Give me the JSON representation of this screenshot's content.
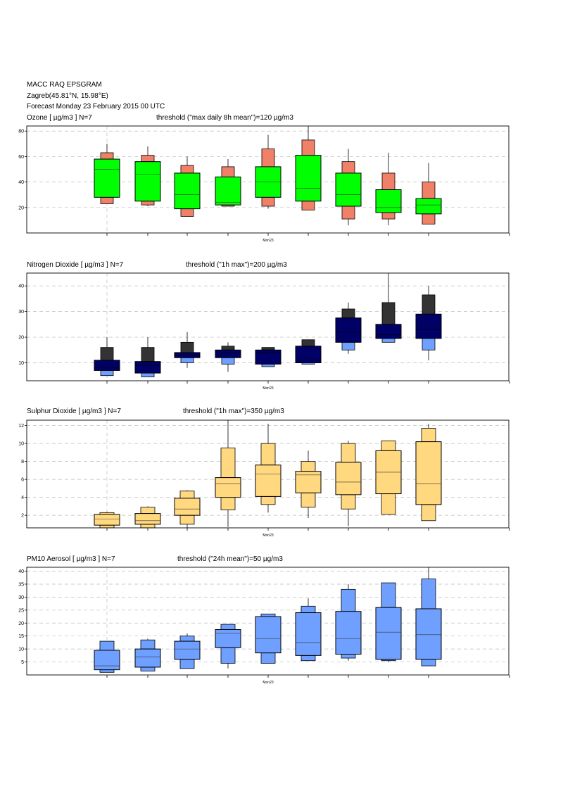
{
  "header": {
    "title": "MACC RAQ EPSGRAM",
    "location": "Zagreb(45.81°N, 15.98°E)",
    "forecast": "Forecast Monday 23 February 2015 00 UTC"
  },
  "colors": {
    "ozone_inner": "#00ff00",
    "ozone_outer": "#f08068",
    "no2_inner": "#000066",
    "no2_upper": "#333333",
    "no2_lower": "#6fa0ff",
    "so2": "#ffd880",
    "pm10": "#6fa0ff"
  },
  "chart_data": [
    {
      "type": "boxplot",
      "name": "ozone",
      "title": "Ozone [ µg/m3 ]    N=7",
      "threshold": "threshold (\"max daily 8h mean\")=120 µg/m3",
      "xtick_label": "Mon23",
      "ylim": [
        0,
        84
      ],
      "yticks": [
        20,
        40,
        60,
        80
      ],
      "grid": true,
      "boxes": [
        {
          "whisker_low": 23,
          "outer_low": 23,
          "inner_low": 28,
          "median": 50,
          "inner_high": 58,
          "outer_high": 63,
          "whisker_high": 70
        },
        {
          "whisker_low": 21,
          "outer_low": 22,
          "inner_low": 25,
          "median": 46,
          "inner_high": 56,
          "outer_high": 61,
          "whisker_high": 68
        },
        {
          "whisker_low": 13,
          "outer_low": 13,
          "inner_low": 19,
          "median": 30,
          "inner_high": 47,
          "outer_high": 53,
          "whisker_high": 60
        },
        {
          "whisker_low": 21,
          "outer_low": 21,
          "inner_low": 22,
          "median": 24,
          "inner_high": 44,
          "outer_high": 52,
          "whisker_high": 58
        },
        {
          "whisker_low": 19,
          "outer_low": 21,
          "inner_low": 28,
          "median": 40,
          "inner_high": 52,
          "outer_high": 66,
          "whisker_high": 77
        },
        {
          "whisker_low": 18,
          "outer_low": 18,
          "inner_low": 25,
          "median": 35,
          "inner_high": 61,
          "outer_high": 73,
          "whisker_high": 84
        },
        {
          "whisker_low": 6,
          "outer_low": 11,
          "inner_low": 21,
          "median": 30,
          "inner_high": 47,
          "outer_high": 56,
          "whisker_high": 66
        },
        {
          "whisker_low": 6,
          "outer_low": 11,
          "inner_low": 16,
          "median": 20,
          "inner_high": 34,
          "outer_high": 47,
          "whisker_high": 63
        },
        {
          "whisker_low": 7,
          "outer_low": 7,
          "inner_low": 15,
          "median": 22,
          "inner_high": 27,
          "outer_high": 40,
          "whisker_high": 55
        }
      ]
    },
    {
      "type": "boxplot",
      "name": "no2",
      "title": "Nitrogen Dioxide [ µg/m3 ]    N=7",
      "threshold": "threshold (\"1h max\")=200 µg/m3",
      "xtick_label": "Mon23",
      "ylim": [
        3,
        45
      ],
      "yticks": [
        10,
        20,
        30,
        40
      ],
      "grid": true,
      "boxes": [
        {
          "whisker_low": 5,
          "outer_low": 5,
          "inner_low": 7,
          "median": 8,
          "inner_high": 11,
          "outer_high": 16,
          "whisker_high": 20
        },
        {
          "whisker_low": 4.5,
          "outer_low": 4.5,
          "inner_low": 6,
          "median": 9,
          "inner_high": 10.5,
          "outer_high": 16,
          "whisker_high": 20
        },
        {
          "whisker_low": 8,
          "outer_low": 10,
          "inner_low": 12,
          "median": 13,
          "inner_high": 14,
          "outer_high": 18,
          "whisker_high": 22
        },
        {
          "whisker_low": 6.5,
          "outer_low": 9.5,
          "inner_low": 12,
          "median": 14,
          "inner_high": 15,
          "outer_high": 16.5,
          "whisker_high": 18
        },
        {
          "whisker_low": 8.5,
          "outer_low": 8.5,
          "inner_low": 9.5,
          "median": 14,
          "inner_high": 15,
          "outer_high": 16,
          "whisker_high": 16
        },
        {
          "whisker_low": 9.5,
          "outer_low": 9.5,
          "inner_low": 10,
          "median": 11,
          "inner_high": 16.5,
          "outer_high": 19,
          "whisker_high": 19
        },
        {
          "whisker_low": 13.5,
          "outer_low": 15,
          "inner_low": 18,
          "median": 22,
          "inner_high": 27.5,
          "outer_high": 31,
          "whisker_high": 33.5
        },
        {
          "whisker_low": 18,
          "outer_low": 18,
          "inner_low": 19.5,
          "median": 21,
          "inner_high": 25,
          "outer_high": 33.5,
          "whisker_high": 45
        },
        {
          "whisker_low": 11,
          "outer_low": 15,
          "inner_low": 19.5,
          "median": 23,
          "inner_high": 29,
          "outer_high": 36.5,
          "whisker_high": 40
        }
      ]
    },
    {
      "type": "boxplot",
      "name": "so2",
      "title": "Sulphur Dioxide [ µg/m3 ]    N=7",
      "threshold": "threshold (\"1h max\")=350 µg/m3",
      "xtick_label": "Mon23",
      "ylim": [
        0.6,
        12.6
      ],
      "yticks": [
        2,
        4,
        6,
        8,
        10,
        12
      ],
      "grid": true,
      "boxes": [
        {
          "whisker_low": 0.6,
          "outer_low": 0.6,
          "inner_low": 0.9,
          "median": 1.6,
          "inner_high": 2.1,
          "outer_high": 2.3,
          "whisker_high": 2.4
        },
        {
          "whisker_low": 0.6,
          "outer_low": 0.6,
          "inner_low": 1.0,
          "median": 1.4,
          "inner_high": 2.2,
          "outer_high": 2.9,
          "whisker_high": 3.0
        },
        {
          "whisker_low": 0.6,
          "outer_low": 1.0,
          "inner_low": 2.0,
          "median": 2.7,
          "inner_high": 3.9,
          "outer_high": 4.7,
          "whisker_high": 4.8
        },
        {
          "whisker_low": 0.7,
          "outer_low": 2.6,
          "inner_low": 4.0,
          "median": 5.5,
          "inner_high": 6.2,
          "outer_high": 9.5,
          "whisker_high": 12.6
        },
        {
          "whisker_low": 2.3,
          "outer_low": 3.2,
          "inner_low": 4.1,
          "median": 6.6,
          "inner_high": 7.6,
          "outer_high": 10.0,
          "whisker_high": 12.2
        },
        {
          "whisker_low": 1.7,
          "outer_low": 2.9,
          "inner_low": 4.5,
          "median": 6.5,
          "inner_high": 6.9,
          "outer_high": 8.0,
          "whisker_high": 9.2
        },
        {
          "whisker_low": 0.8,
          "outer_low": 2.7,
          "inner_low": 4.3,
          "median": 5.7,
          "inner_high": 7.9,
          "outer_high": 10.0,
          "whisker_high": 10.3
        },
        {
          "whisker_low": 2.1,
          "outer_low": 2.1,
          "inner_low": 4.4,
          "median": 6.8,
          "inner_high": 9.2,
          "outer_high": 10.3,
          "whisker_high": 10.3
        },
        {
          "whisker_low": 1.4,
          "outer_low": 1.4,
          "inner_low": 3.2,
          "median": 5.5,
          "inner_high": 10.2,
          "outer_high": 11.7,
          "whisker_high": 12.2
        }
      ]
    },
    {
      "type": "boxplot",
      "name": "pm10",
      "title": "PM10 Aerosol [ µg/m3 ]    N=7",
      "threshold": "threshold (\"24h mean\")=50 µg/m3",
      "xtick_label": "Mon23",
      "ylim": [
        0,
        41.5
      ],
      "yticks": [
        5,
        10,
        15,
        20,
        25,
        30,
        35,
        40
      ],
      "grid": true,
      "boxes": [
        {
          "whisker_low": 1,
          "outer_low": 1,
          "inner_low": 2,
          "median": 3.5,
          "inner_high": 9.5,
          "outer_high": 13,
          "whisker_high": 13
        },
        {
          "whisker_low": 1.5,
          "outer_low": 1.5,
          "inner_low": 3,
          "median": 7,
          "inner_high": 10,
          "outer_high": 13.5,
          "whisker_high": 14
        },
        {
          "whisker_low": 2.5,
          "outer_low": 2.5,
          "inner_low": 6,
          "median": 10,
          "inner_high": 13,
          "outer_high": 15,
          "whisker_high": 16
        },
        {
          "whisker_low": 2.5,
          "outer_low": 4.5,
          "inner_low": 10.5,
          "median": 16,
          "inner_high": 17.5,
          "outer_high": 19.5,
          "whisker_high": 19.5
        },
        {
          "whisker_low": 4.5,
          "outer_low": 4.5,
          "inner_low": 8.5,
          "median": 14,
          "inner_high": 22.5,
          "outer_high": 23.5,
          "whisker_high": 23.5
        },
        {
          "whisker_low": 5.5,
          "outer_low": 5.5,
          "inner_low": 7.5,
          "median": 12.5,
          "inner_high": 24,
          "outer_high": 26.5,
          "whisker_high": 29.5
        },
        {
          "whisker_low": 5.5,
          "outer_low": 6.5,
          "inner_low": 8,
          "median": 14,
          "inner_high": 24.5,
          "outer_high": 33,
          "whisker_high": 35
        },
        {
          "whisker_low": 5,
          "outer_low": 5.5,
          "inner_low": 6,
          "median": 16.5,
          "inner_high": 26,
          "outer_high": 35.5,
          "whisker_high": 35.5
        },
        {
          "whisker_low": 3.5,
          "outer_low": 3.5,
          "inner_low": 6,
          "median": 15.5,
          "inner_high": 25.5,
          "outer_high": 37,
          "whisker_high": 41.5
        }
      ]
    }
  ]
}
